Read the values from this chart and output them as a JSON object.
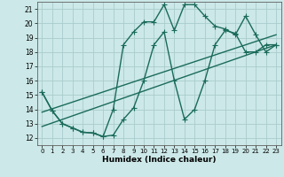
{
  "xlabel": "Humidex (Indice chaleur)",
  "background_color": "#cce8e8",
  "grid_color": "#aacccc",
  "line_color": "#1a6b5a",
  "xlim": [
    -0.5,
    23.5
  ],
  "ylim": [
    11.5,
    21.5
  ],
  "yticks": [
    12,
    13,
    14,
    15,
    16,
    17,
    18,
    19,
    20,
    21
  ],
  "xticks": [
    0,
    1,
    2,
    3,
    4,
    5,
    6,
    7,
    8,
    9,
    10,
    11,
    12,
    13,
    14,
    15,
    16,
    17,
    18,
    19,
    20,
    21,
    22,
    23
  ],
  "line1_x": [
    0,
    1,
    2,
    3,
    4,
    5,
    6,
    7,
    8,
    9,
    10,
    11,
    12,
    13,
    14,
    15,
    16,
    17,
    18,
    19,
    20,
    21,
    22,
    23
  ],
  "line1_y": [
    15.2,
    13.9,
    13.0,
    12.7,
    12.4,
    12.35,
    12.1,
    12.2,
    13.3,
    14.1,
    16.0,
    18.5,
    19.4,
    16.0,
    13.3,
    14.0,
    16.0,
    18.5,
    19.5,
    19.3,
    18.0,
    18.0,
    18.5,
    18.5
  ],
  "line2_x": [
    0,
    1,
    2,
    3,
    4,
    5,
    6,
    7,
    8,
    9,
    10,
    11,
    12,
    13,
    14,
    15,
    16,
    17,
    18,
    19,
    20,
    21,
    22,
    23
  ],
  "line2_y": [
    15.2,
    13.9,
    13.0,
    12.7,
    12.4,
    12.35,
    12.1,
    14.0,
    18.5,
    19.4,
    20.1,
    20.1,
    21.3,
    19.5,
    21.3,
    21.3,
    20.5,
    19.8,
    19.6,
    19.2,
    20.5,
    19.2,
    18.0,
    18.5
  ],
  "line3_x": [
    0,
    23
  ],
  "line3_y": [
    12.8,
    18.5
  ],
  "line4_x": [
    0,
    23
  ],
  "line4_y": [
    13.8,
    19.2
  ],
  "marker_size": 2.5,
  "line_width": 1.0
}
